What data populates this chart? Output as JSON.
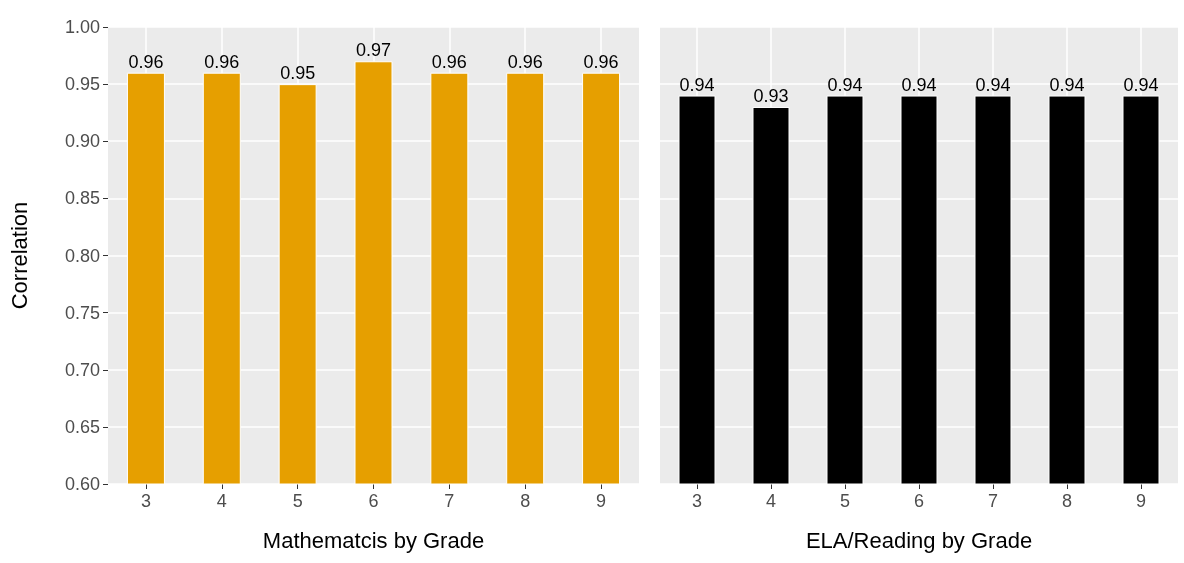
{
  "chart_data": [
    {
      "type": "bar",
      "xlabel": "Mathematcis by Grade",
      "ylabel": "Correlation",
      "categories": [
        "3",
        "4",
        "5",
        "6",
        "7",
        "8",
        "9"
      ],
      "values": [
        0.96,
        0.96,
        0.95,
        0.97,
        0.96,
        0.96,
        0.96
      ],
      "color": "#e69f00",
      "data_labels": true,
      "ylim": [
        0.6,
        1.0
      ],
      "yticks": [
        {
          "value": 0.6,
          "label": "0.60"
        },
        {
          "value": 0.65,
          "label": "0.65"
        },
        {
          "value": 0.7,
          "label": "0.70"
        },
        {
          "value": 0.75,
          "label": "0.75"
        },
        {
          "value": 0.8,
          "label": "0.80"
        },
        {
          "value": 0.85,
          "label": "0.85"
        },
        {
          "value": 0.9,
          "label": "0.90"
        },
        {
          "value": 0.95,
          "label": "0.95"
        },
        {
          "value": 1,
          "label": "1.00"
        }
      ],
      "grid": true
    },
    {
      "type": "bar",
      "xlabel": "ELA/Reading by Grade",
      "categories": [
        "3",
        "4",
        "5",
        "6",
        "7",
        "8",
        "9"
      ],
      "values": [
        0.94,
        0.93,
        0.94,
        0.94,
        0.94,
        0.94,
        0.94
      ],
      "color": "#000000",
      "data_labels": true,
      "ylim": [
        0.6,
        1.0
      ],
      "yticks": [
        0.6,
        0.65,
        0.7,
        0.75,
        0.8,
        0.85,
        0.9,
        0.95,
        1
      ],
      "grid": true,
      "tick_labels": "x"
    }
  ]
}
